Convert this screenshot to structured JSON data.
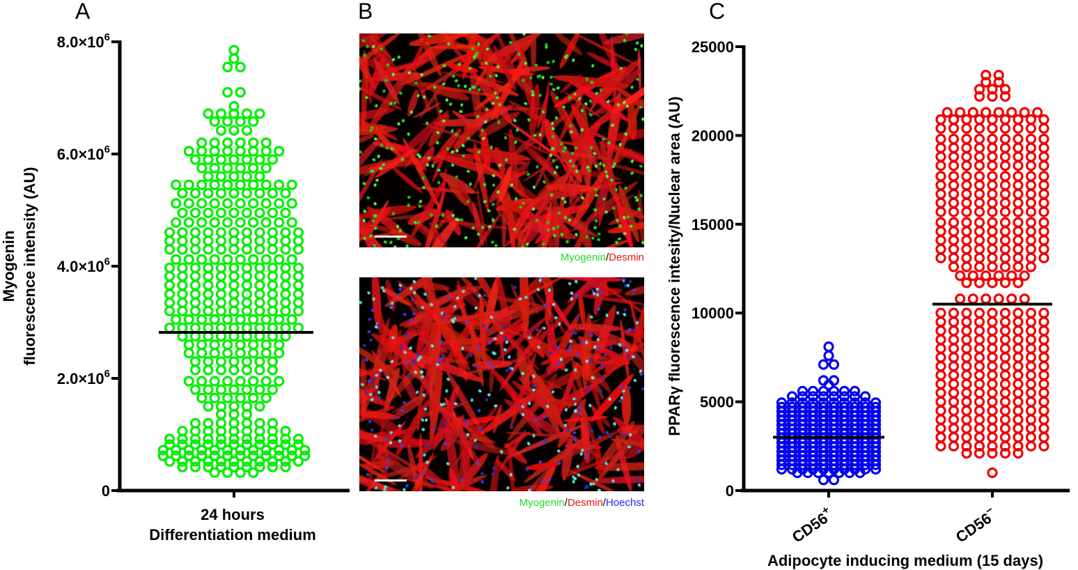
{
  "panels": {
    "a": "A",
    "b": "B",
    "c": "C"
  },
  "micrographs": {
    "top_caption": [
      "Myogenin",
      "/",
      "Desmin"
    ],
    "bottom_caption": [
      "Myogenin",
      "/",
      "Desmin",
      "/",
      "Hoechst"
    ],
    "colors": {
      "myogenin": "#22dd22",
      "desmin": "#ee1111",
      "hoechst": "#2222ff"
    }
  },
  "chart_data": [
    {
      "type": "scatter",
      "subtype": "dot-plot with mean line",
      "ylabel": [
        "Myogenin",
        "fluorescence intensity (AU)"
      ],
      "xlabel": [
        "24 hours",
        "Differentiation medium"
      ],
      "ylim": [
        0,
        8000000
      ],
      "yticks": [
        {
          "value": 0,
          "mantissa": "0",
          "exp": ""
        },
        {
          "value": 2000000,
          "mantissa": "2.0×10",
          "exp": "6"
        },
        {
          "value": 4000000,
          "mantissa": "4.0×10",
          "exp": "6"
        },
        {
          "value": 6000000,
          "mantissa": "6.0×10",
          "exp": "6"
        },
        {
          "value": 8000000,
          "mantissa": "8.0×10",
          "exp": "6"
        }
      ],
      "color": "#00ee00",
      "series": [
        {
          "name": "24 hours Differentiation medium",
          "mean": 2820000,
          "value_unit": 1000000,
          "bins": [
            [
              7.85,
              1
            ],
            [
              7.7,
              1
            ],
            [
              7.55,
              2
            ],
            [
              7.1,
              2
            ],
            [
              6.85,
              1
            ],
            [
              6.72,
              5
            ],
            [
              6.58,
              4
            ],
            [
              6.42,
              3
            ],
            [
              6.2,
              6
            ],
            [
              6.05,
              8
            ],
            [
              5.9,
              7
            ],
            [
              5.75,
              6
            ],
            [
              5.6,
              5
            ],
            [
              5.45,
              10
            ],
            [
              5.3,
              9
            ],
            [
              5.12,
              10
            ],
            [
              4.95,
              9
            ],
            [
              4.78,
              10
            ],
            [
              4.6,
              11
            ],
            [
              4.45,
              11
            ],
            [
              4.3,
              11
            ],
            [
              4.12,
              10
            ],
            [
              3.97,
              11
            ],
            [
              3.82,
              11
            ],
            [
              3.66,
              11
            ],
            [
              3.5,
              11
            ],
            [
              3.35,
              11
            ],
            [
              3.2,
              11
            ],
            [
              3.05,
              10
            ],
            [
              2.9,
              11
            ],
            [
              2.75,
              9
            ],
            [
              2.6,
              8
            ],
            [
              2.45,
              8
            ],
            [
              2.3,
              7
            ],
            [
              2.15,
              7
            ],
            [
              1.95,
              8
            ],
            [
              1.8,
              7
            ],
            [
              1.65,
              6
            ],
            [
              1.5,
              5
            ],
            [
              1.36,
              3
            ],
            [
              1.2,
              7
            ],
            [
              1.06,
              9
            ],
            [
              0.92,
              11
            ],
            [
              0.82,
              11
            ],
            [
              0.72,
              12
            ],
            [
              0.62,
              12
            ],
            [
              0.52,
              11
            ],
            [
              0.42,
              9
            ],
            [
              0.32,
              4
            ]
          ]
        }
      ]
    },
    {
      "type": "scatter",
      "subtype": "dot-plot with mean line",
      "ylabel": "PPARγ fluorescence intesity/Nuclear area (AU)",
      "xlabel": "Adipocyte inducing medium (15 days)",
      "ylim": [
        0,
        25000
      ],
      "yticks": [
        "0",
        "5000",
        "10000",
        "15000",
        "20000",
        "25000"
      ],
      "categories": [
        {
          "base": "CD56",
          "sup": "+"
        },
        {
          "base": "CD56",
          "sup": "−"
        }
      ],
      "series": [
        {
          "name": "CD56+",
          "color": "#0000ee",
          "mean": 3000,
          "value_unit": 1000,
          "bins": [
            [
              8.1,
              1
            ],
            [
              7.6,
              1
            ],
            [
              7.1,
              2
            ],
            [
              6.2,
              2
            ],
            [
              5.95,
              1
            ],
            [
              5.6,
              6
            ],
            [
              5.3,
              8
            ],
            [
              4.95,
              10
            ],
            [
              4.7,
              10
            ],
            [
              4.45,
              10
            ],
            [
              4.2,
              10
            ],
            [
              3.95,
              10
            ],
            [
              3.7,
              10
            ],
            [
              3.45,
              10
            ],
            [
              3.2,
              10
            ],
            [
              2.95,
              10
            ],
            [
              2.7,
              10
            ],
            [
              2.45,
              10
            ],
            [
              2.2,
              10
            ],
            [
              1.95,
              10
            ],
            [
              1.7,
              10
            ],
            [
              1.45,
              10
            ],
            [
              1.2,
              10
            ],
            [
              1.0,
              7
            ],
            [
              0.6,
              2
            ]
          ]
        },
        {
          "name": "CD56-",
          "color": "#ee0000",
          "mean": 10500,
          "value_unit": 1000,
          "bins": [
            [
              23.4,
              2
            ],
            [
              23.0,
              2
            ],
            [
              22.6,
              3
            ],
            [
              22.2,
              3
            ],
            [
              21.3,
              8
            ],
            [
              20.9,
              9
            ],
            [
              20.4,
              9
            ],
            [
              19.8,
              9
            ],
            [
              19.3,
              9
            ],
            [
              18.8,
              9
            ],
            [
              18.3,
              9
            ],
            [
              17.7,
              9
            ],
            [
              17.2,
              9
            ],
            [
              16.7,
              9
            ],
            [
              16.2,
              9
            ],
            [
              15.7,
              9
            ],
            [
              15.1,
              9
            ],
            [
              14.6,
              9
            ],
            [
              14.1,
              9
            ],
            [
              13.6,
              9
            ],
            [
              13.1,
              9
            ],
            [
              12.6,
              7
            ],
            [
              12.1,
              6
            ],
            [
              11.7,
              5
            ],
            [
              10.8,
              6
            ],
            [
              10.0,
              9
            ],
            [
              9.5,
              9
            ],
            [
              9.0,
              9
            ],
            [
              8.5,
              9
            ],
            [
              8.0,
              9
            ],
            [
              7.5,
              9
            ],
            [
              7.0,
              9
            ],
            [
              6.5,
              9
            ],
            [
              6.0,
              9
            ],
            [
              5.5,
              9
            ],
            [
              5.0,
              9
            ],
            [
              4.5,
              9
            ],
            [
              4.0,
              9
            ],
            [
              3.5,
              9
            ],
            [
              3.0,
              9
            ],
            [
              2.5,
              9
            ],
            [
              2.1,
              5
            ],
            [
              1.0,
              1
            ]
          ]
        }
      ]
    }
  ]
}
